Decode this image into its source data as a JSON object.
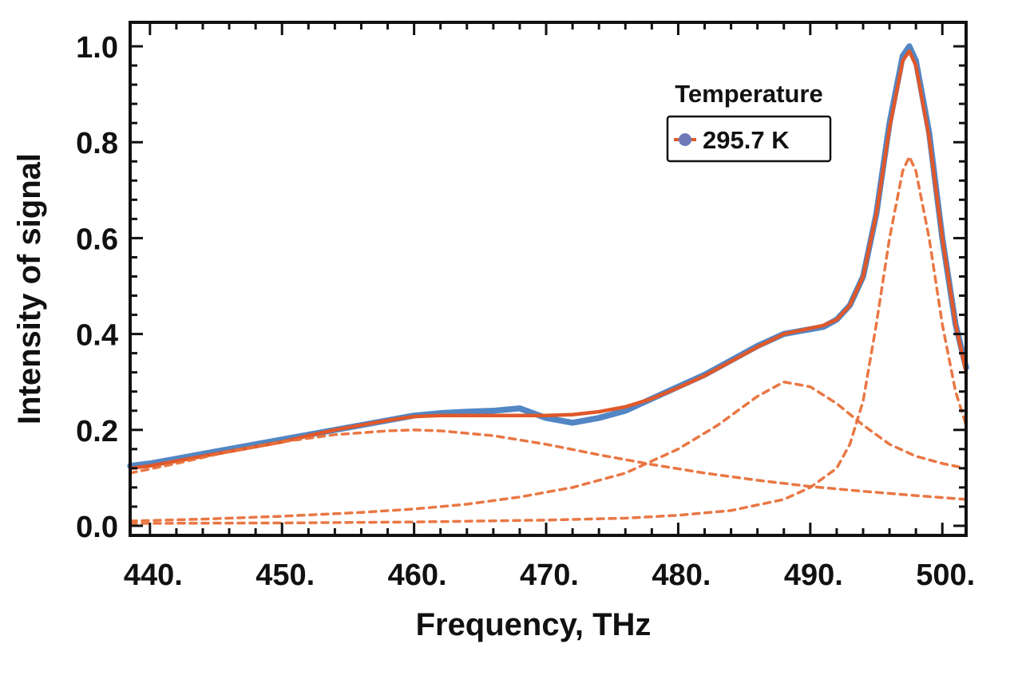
{
  "chart_data": {
    "type": "line",
    "title": "",
    "xlabel": "Frequency, THz",
    "ylabel": "Intensity of signal",
    "xlim": [
      438.5,
      501.8
    ],
    "ylim": [
      -0.02,
      1.05
    ],
    "x_ticks": [
      440,
      450,
      460,
      470,
      480,
      490,
      500
    ],
    "x_tick_labels": [
      "440.",
      "450.",
      "460.",
      "470.",
      "480.",
      "490.",
      "500."
    ],
    "y_ticks": [
      0.0,
      0.2,
      0.4,
      0.6,
      0.8,
      1.0
    ],
    "y_tick_labels": [
      "0.0",
      "0.2",
      "0.4",
      "0.6",
      "0.8",
      "1.0"
    ],
    "grid": false,
    "legend": {
      "title": "Temperature",
      "entries": [
        "295.7 K"
      ],
      "position": "top-right"
    },
    "colors": {
      "measured": "#4a7fc1",
      "fit": "#e0582a",
      "component": "#e8703a",
      "axis": "#111111"
    },
    "series": [
      {
        "name": "295.7 K",
        "style": "measured",
        "x": [
          438.5,
          440,
          442,
          444,
          446,
          448,
          450,
          452,
          454,
          456,
          458,
          460,
          462,
          464,
          466,
          468,
          470,
          472,
          474,
          476,
          478,
          480,
          482,
          484,
          486,
          488,
          490,
          491,
          492,
          493,
          494,
          495,
          496,
          497,
          497.5,
          498,
          499,
          500,
          501,
          501.8
        ],
        "y": [
          0.125,
          0.13,
          0.14,
          0.15,
          0.16,
          0.17,
          0.18,
          0.19,
          0.2,
          0.21,
          0.22,
          0.23,
          0.235,
          0.238,
          0.24,
          0.245,
          0.225,
          0.215,
          0.225,
          0.24,
          0.265,
          0.29,
          0.315,
          0.345,
          0.375,
          0.4,
          0.41,
          0.415,
          0.43,
          0.46,
          0.52,
          0.65,
          0.84,
          0.98,
          1.0,
          0.97,
          0.82,
          0.6,
          0.42,
          0.33
        ]
      },
      {
        "style": "fit",
        "x": [
          438.5,
          440,
          442,
          444,
          446,
          448,
          450,
          452,
          454,
          456,
          458,
          460,
          462,
          464,
          466,
          468,
          470,
          472,
          474,
          476,
          478,
          480,
          482,
          484,
          486,
          488,
          490,
          491,
          492,
          493,
          494,
          495,
          496,
          497,
          497.5,
          498,
          499,
          500,
          501,
          501.8
        ],
        "y": [
          0.12,
          0.125,
          0.135,
          0.145,
          0.155,
          0.165,
          0.175,
          0.188,
          0.2,
          0.21,
          0.22,
          0.228,
          0.23,
          0.23,
          0.23,
          0.23,
          0.23,
          0.232,
          0.238,
          0.248,
          0.265,
          0.288,
          0.313,
          0.343,
          0.373,
          0.4,
          0.412,
          0.418,
          0.43,
          0.46,
          0.52,
          0.65,
          0.83,
          0.97,
          0.99,
          0.96,
          0.81,
          0.6,
          0.42,
          0.32
        ]
      },
      {
        "style": "component",
        "x": [
          438.5,
          442,
          446,
          450,
          454,
          458,
          460,
          462,
          466,
          470,
          474,
          478,
          482,
          486,
          490,
          494,
          498,
          501.8
        ],
        "y": [
          0.11,
          0.13,
          0.155,
          0.175,
          0.19,
          0.198,
          0.2,
          0.198,
          0.188,
          0.17,
          0.148,
          0.128,
          0.11,
          0.095,
          0.082,
          0.072,
          0.063,
          0.055
        ]
      },
      {
        "style": "component",
        "x": [
          438.5,
          444,
          450,
          456,
          460,
          464,
          468,
          472,
          476,
          480,
          483,
          486,
          488,
          490,
          492,
          494,
          496,
          498,
          500,
          501.8
        ],
        "y": [
          0.01,
          0.014,
          0.02,
          0.028,
          0.035,
          0.045,
          0.06,
          0.08,
          0.11,
          0.16,
          0.21,
          0.27,
          0.3,
          0.29,
          0.255,
          0.21,
          0.17,
          0.145,
          0.13,
          0.12
        ]
      },
      {
        "style": "component",
        "x": [
          438.5,
          450,
          460,
          470,
          476,
          480,
          484,
          488,
          490,
          492,
          493,
          494,
          495,
          496,
          497,
          497.5,
          498,
          499,
          500,
          501,
          501.8
        ],
        "y": [
          0.005,
          0.006,
          0.008,
          0.012,
          0.016,
          0.022,
          0.032,
          0.055,
          0.08,
          0.12,
          0.17,
          0.26,
          0.42,
          0.6,
          0.74,
          0.77,
          0.74,
          0.6,
          0.42,
          0.28,
          0.21
        ]
      }
    ]
  }
}
